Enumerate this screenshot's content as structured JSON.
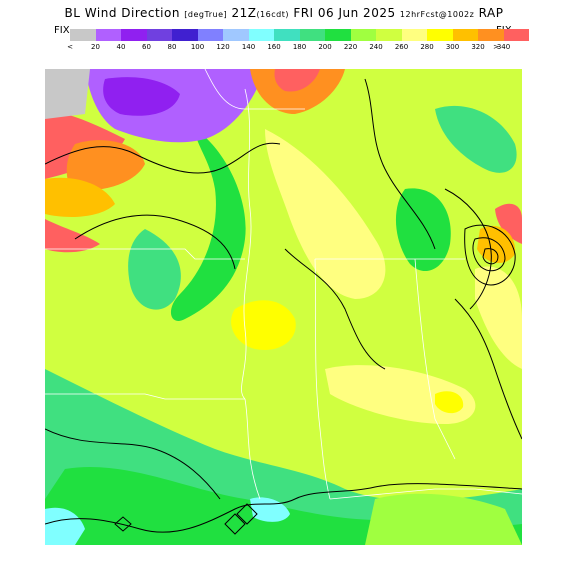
{
  "title": {
    "product": "BL Wind Direction",
    "units": "[degTrue]",
    "valid": "21Z",
    "local": "(16cdt)",
    "date": "FRI 06 Jun 2025",
    "run": "12hrFcst@1002z",
    "model": "RAP"
  },
  "colorbar": {
    "fix_left": "FIX",
    "fix_right": "FIX",
    "less_symbol": "<",
    "greater_symbol": ">",
    "tick_labels": [
      "20",
      "40",
      "60",
      "80",
      "100",
      "120",
      "140",
      "160",
      "180",
      "200",
      "220",
      "240",
      "260",
      "280",
      "300",
      "320",
      "340"
    ],
    "colors": [
      "#c8c8c8",
      "#b060ff",
      "#9020f0",
      "#7040e0",
      "#4020d0",
      "#8080ff",
      "#a0c8ff",
      "#80ffff",
      "#40e0c0",
      "#40e080",
      "#20e040",
      "#a0ff40",
      "#d0ff40",
      "#ffff80",
      "#ffff00",
      "#ffc000",
      "#ff9020",
      "#ff6060"
    ]
  },
  "map": {
    "field_colors": {
      "calm": "#c8c8c8",
      "purple": "#b060ff",
      "violet": "#9020f0",
      "orange": "#ff9020",
      "salmon": "#ff6060",
      "light_orange": "#ffc000",
      "green": "#40e080",
      "bright_green": "#20e040",
      "lime": "#a0ff40",
      "yellow_green": "#d0ff40",
      "pale_yellow": "#ffff80",
      "yellow": "#ffff00",
      "cyan": "#80ffff"
    }
  }
}
